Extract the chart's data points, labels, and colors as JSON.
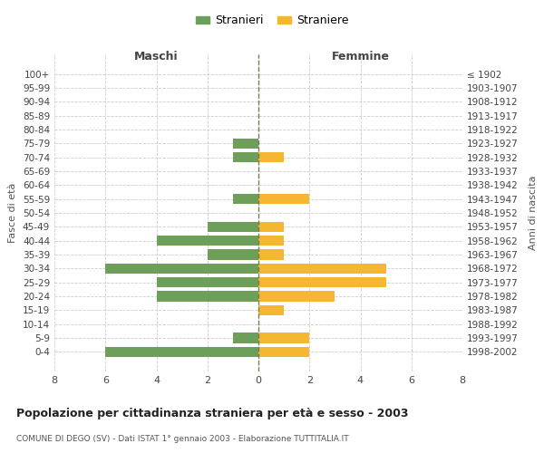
{
  "age_groups": [
    "100+",
    "95-99",
    "90-94",
    "85-89",
    "80-84",
    "75-79",
    "70-74",
    "65-69",
    "60-64",
    "55-59",
    "50-54",
    "45-49",
    "40-44",
    "35-39",
    "30-34",
    "25-29",
    "20-24",
    "15-19",
    "10-14",
    "5-9",
    "0-4"
  ],
  "birth_years": [
    "≤ 1902",
    "1903-1907",
    "1908-1912",
    "1913-1917",
    "1918-1922",
    "1923-1927",
    "1928-1932",
    "1933-1937",
    "1938-1942",
    "1943-1947",
    "1948-1952",
    "1953-1957",
    "1958-1962",
    "1963-1967",
    "1968-1972",
    "1973-1977",
    "1978-1982",
    "1983-1987",
    "1988-1992",
    "1993-1997",
    "1998-2002"
  ],
  "males": [
    0,
    0,
    0,
    0,
    0,
    1,
    1,
    0,
    0,
    1,
    0,
    2,
    4,
    2,
    6,
    4,
    4,
    0,
    0,
    1,
    6
  ],
  "females": [
    0,
    0,
    0,
    0,
    0,
    0,
    1,
    0,
    0,
    2,
    0,
    1,
    1,
    1,
    5,
    5,
    3,
    1,
    0,
    2,
    2
  ],
  "male_color": "#6d9e5a",
  "female_color": "#f5b731",
  "center_line_color": "#7a7a50",
  "grid_color": "#cccccc",
  "bg_color": "#ffffff",
  "title": "Popolazione per cittadinanza straniera per età e sesso - 2003",
  "subtitle": "COMUNE DI DEGO (SV) - Dati ISTAT 1° gennaio 2003 - Elaborazione TUTTITALIA.IT",
  "xlabel_left": "Maschi",
  "xlabel_right": "Femmine",
  "ylabel_left": "Fasce di età",
  "ylabel_right": "Anni di nascita",
  "legend_male": "Stranieri",
  "legend_female": "Straniere",
  "xlim": 8,
  "bar_height": 0.75
}
